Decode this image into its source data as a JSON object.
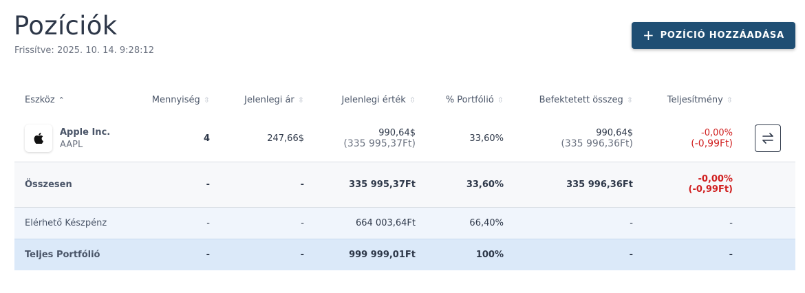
{
  "header": {
    "title": "Pozíciók",
    "updated": "Frissítve: 2025. 10. 14. 9:28:12",
    "add_button": "POZÍCIÓ HOZZÁADÁSA"
  },
  "table": {
    "columns": [
      "Eszköz",
      "Mennyiség",
      "Jelenlegi ár",
      "Jelenlegi érték",
      "% Portfólió",
      "Befektetett összeg",
      "Teljesítmény"
    ],
    "asset": {
      "name": "Apple Inc.",
      "ticker": "AAPL",
      "quantity": "4",
      "price": "247,66$",
      "value": "990,64$",
      "value_huf": "(335 995,37Ft)",
      "portfolio_pct": "33,60%",
      "invested": "990,64$",
      "invested_huf": "(335 996,36Ft)",
      "performance_pct": "-0,00%",
      "performance_huf": "(-0,99Ft)"
    },
    "total": {
      "label": "Összesen",
      "quantity": "-",
      "price": "-",
      "value": "335 995,37Ft",
      "portfolio_pct": "33,60%",
      "invested": "335 996,36Ft",
      "performance_pct": "-0,00%",
      "performance_huf": "(-0,99Ft)"
    },
    "cash": {
      "label": "Elérhető Készpénz",
      "quantity": "-",
      "price": "-",
      "value": "664 003,64Ft",
      "portfolio_pct": "66,40%",
      "invested": "-",
      "performance": "-"
    },
    "portfolio": {
      "label": "Teljes Portfólió",
      "quantity": "-",
      "price": "-",
      "value": "999 999,01Ft",
      "portfolio_pct": "100%",
      "invested": "-",
      "performance": "-"
    }
  },
  "colors": {
    "primary": "#1f4e73",
    "negative": "#d01f1f",
    "cash_row": "#f0f5fc",
    "portfolio_row": "#dbe9f9"
  },
  "icons": {
    "add": "plus-icon",
    "sort": "sort-icon",
    "asset_logo": "apple-logo-icon",
    "swap": "swap-arrows-icon"
  }
}
